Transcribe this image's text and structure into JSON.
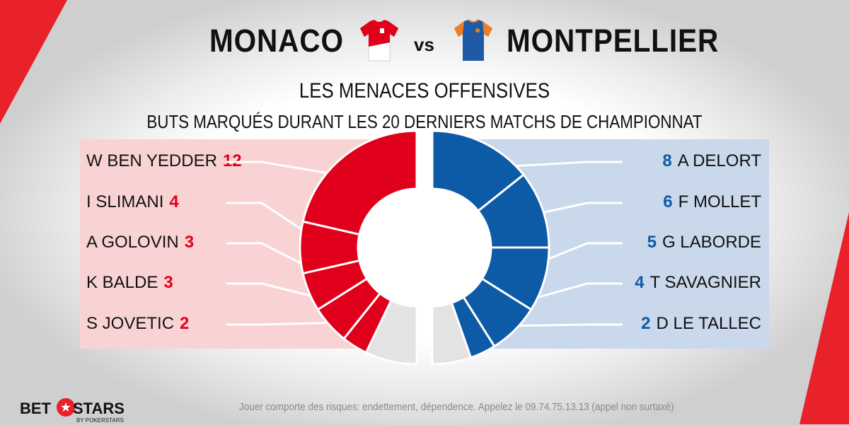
{
  "header": {
    "home_team": "MONACO",
    "vs": "vs",
    "away_team": "MONTPELLIER",
    "title": "LES MENACES OFFENSIVES",
    "subtitle": "BUTS MARQUÉS DURANT LES 20 DERNIERS MATCHS DE CHAMPIONNAT"
  },
  "colors": {
    "home_accent": "#e1001b",
    "home_panel": "#f9d3d4",
    "away_accent": "#0d5ba7",
    "away_panel": "#c9d8ea",
    "other_segment": "#e3e3e3",
    "brand_red": "#e8212b"
  },
  "chart_data": [
    {
      "type": "pie",
      "title": "MONACO",
      "categories": [
        "W BEN YEDDER",
        "I SLIMANI",
        "A GOLOVIN",
        "K BALDE",
        "S JOVETIC",
        ""
      ],
      "values": [
        12,
        4,
        3,
        3,
        2,
        4
      ],
      "labels": [
        {
          "name": "W BEN YEDDER",
          "goals": "12"
        },
        {
          "name": "I SLIMANI",
          "goals": "4"
        },
        {
          "name": "A GOLOVIN",
          "goals": "3"
        },
        {
          "name": "K BALDE",
          "goals": "3"
        },
        {
          "name": "S JOVETIC",
          "goals": "2"
        }
      ],
      "shape": "half-donut-left",
      "legend": "left"
    },
    {
      "type": "pie",
      "title": "MONTPELLIER",
      "categories": [
        "A DELORT",
        "F MOLLET",
        "G LABORDE",
        "T SAVAGNIER",
        "D LE TALLEC",
        ""
      ],
      "values": [
        8,
        6,
        5,
        4,
        2,
        3
      ],
      "labels": [
        {
          "name": "A DELORT",
          "goals": "8"
        },
        {
          "name": "F MOLLET",
          "goals": "6"
        },
        {
          "name": "G LABORDE",
          "goals": "5"
        },
        {
          "name": "T SAVAGNIER",
          "goals": "4"
        },
        {
          "name": "D LE TALLEC",
          "goals": "2"
        }
      ],
      "shape": "half-donut-right",
      "legend": "right"
    }
  ],
  "brand": {
    "logo_left": "BET",
    "logo_right": "STARS",
    "logo_sub": "BY POKERSTARS"
  },
  "disclaimer": "Jouer comporte des risques: endettement, dépendence. Appelez le 09.74.75.13.13 (appel non surtaxé)"
}
